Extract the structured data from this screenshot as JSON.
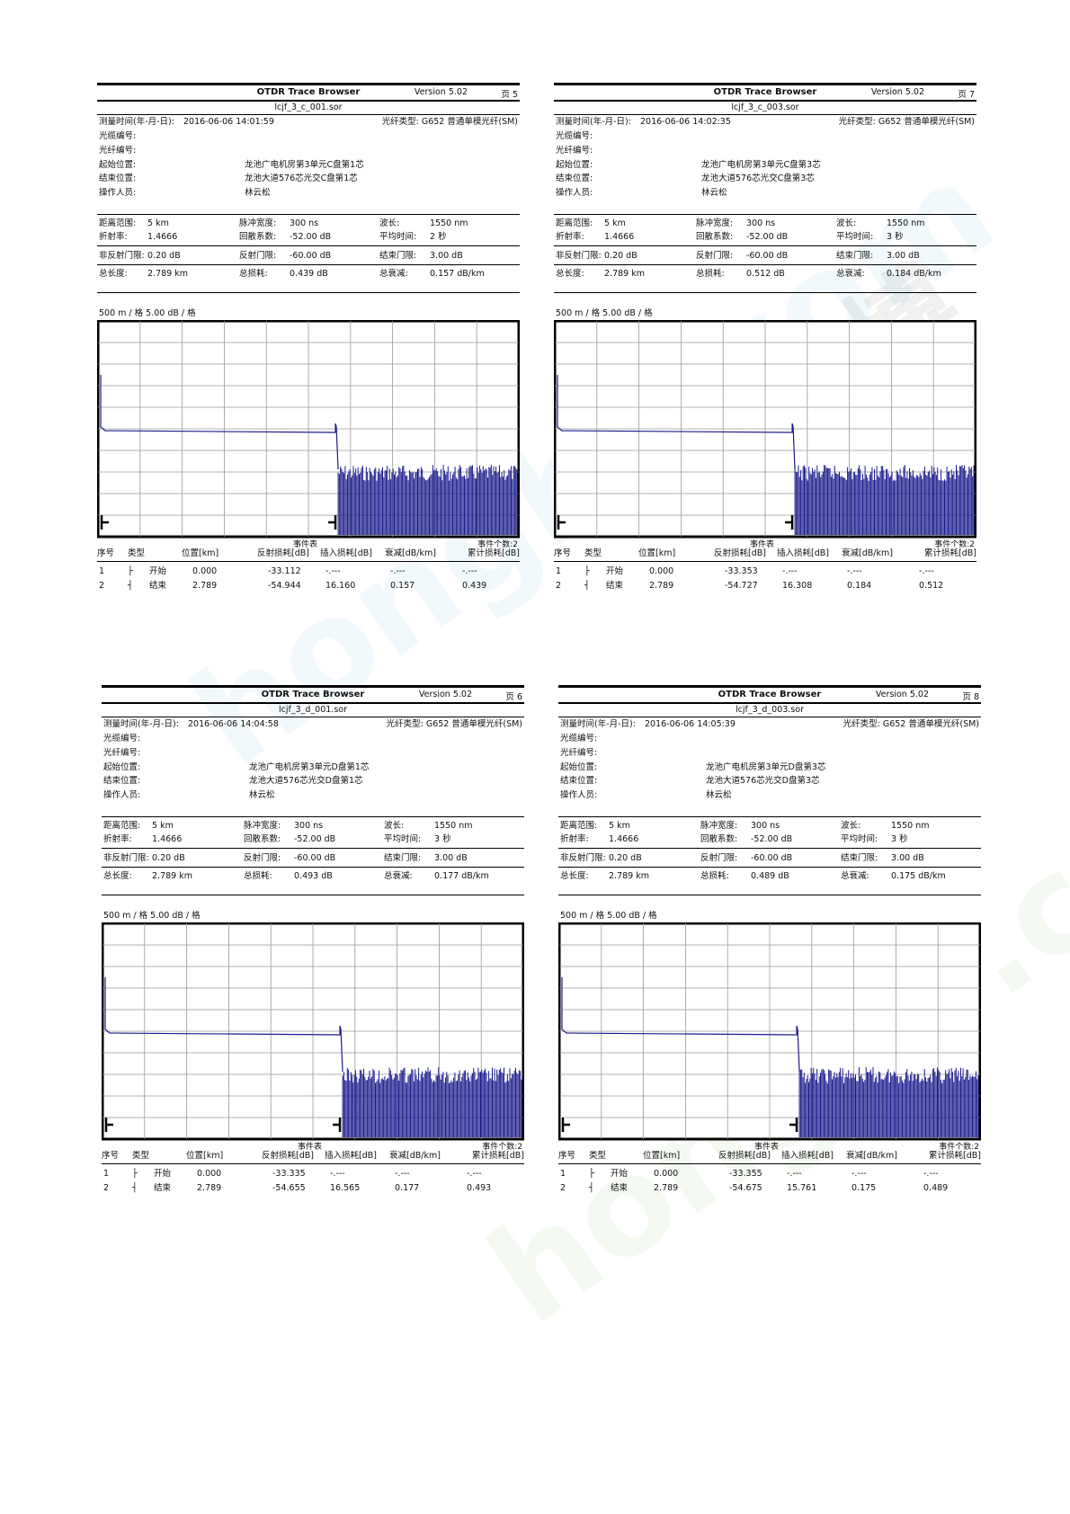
{
  "panels": [
    {
      "app": "OTDR Trace Browser",
      "version": "Version 5.02",
      "page": "页 5",
      "file": "lcjf_3_c_001.sor",
      "measure_time_label": "测量时间(年-月-日):",
      "measure_time": "2016-06-06  14:01:59",
      "fiber_type": "光纤类型: G652 普通单模光纤(SM)",
      "cable_no_label": "光缆编号:",
      "fiber_no_label": "光纤编号:",
      "start_label": "起始位置:",
      "start": "龙池广电机房第3单元C盘第1芯",
      "end_label": "结束位置:",
      "end": "龙池大道576芯光交C盘第1芯",
      "operator_label": "操作人员:",
      "operator": "林云松",
      "range_label": "距离范围:",
      "range": "5 km",
      "pulse_label": "脉冲宽度:",
      "pulse": "300 ns",
      "wl_label": "波长:",
      "wl": "1550 nm",
      "ior_label": "折射率:",
      "ior": "1.4666",
      "bs_label": "回散系数:",
      "bs": "-52.00 dB",
      "avg_label": "平均时间:",
      "avg": "2 秒",
      "nonref_label": "非反射门限:",
      "nonref": "0.20 dB",
      "ref_label": "反射门限:",
      "ref": "-60.00 dB",
      "endth_label": "结束门限:",
      "endth": "3.00 dB",
      "len_label": "总长度:",
      "len": "2.789 km",
      "loss_label": "总损耗:",
      "loss": "0.439 dB",
      "att_label": "总衰减:",
      "att": "0.157 dB/km",
      "scale": "500 m / 格    5.00 dB / 格",
      "event_table_label": "事件表",
      "event_count": "事件个数:2",
      "cols": [
        "序号",
        "类型",
        "位置[km]",
        "反射损耗[dB]",
        "插入损耗[dB]",
        "衰减[dB/km]",
        "累计损耗[dB]"
      ],
      "rows": [
        [
          "1",
          "├",
          "开始",
          "0.000",
          "-33.112",
          "-.---",
          "-.---",
          "-.---"
        ],
        [
          "2",
          "┤",
          "结束",
          "2.789",
          "-54.944",
          "16.160",
          "0.157",
          "0.439"
        ]
      ],
      "chart_data": {
        "type": "line",
        "xlabel": "",
        "ylabel": "",
        "x_per_div_m": 500,
        "y_per_div_db": 5,
        "events_km": [
          0.0,
          2.789
        ],
        "reflection_db": [
          -33.112,
          -54.944
        ]
      }
    },
    {
      "app": "OTDR Trace Browser",
      "version": "Version 5.02",
      "page": "页 7",
      "file": "lcjf_3_c_003.sor",
      "measure_time_label": "测量时间(年-月-日):",
      "measure_time": "2016-06-06  14:02:35",
      "fiber_type": "光纤类型: G652 普通单模光纤(SM)",
      "cable_no_label": "光缆编号:",
      "fiber_no_label": "光纤编号:",
      "start_label": "起始位置:",
      "start": "龙池广电机房第3单元C盘第3芯",
      "end_label": "结束位置:",
      "end": "龙池大道576芯光交C盘第3芯",
      "operator_label": "操作人员:",
      "operator": "林云松",
      "range_label": "距离范围:",
      "range": "5 km",
      "pulse_label": "脉冲宽度:",
      "pulse": "300 ns",
      "wl_label": "波长:",
      "wl": "1550 nm",
      "ior_label": "折射率:",
      "ior": "1.4666",
      "bs_label": "回散系数:",
      "bs": "-52.00 dB",
      "avg_label": "平均时间:",
      "avg": "3 秒",
      "nonref_label": "非反射门限:",
      "nonref": "0.20 dB",
      "ref_label": "反射门限:",
      "ref": "-60.00 dB",
      "endth_label": "结束门限:",
      "endth": "3.00 dB",
      "len_label": "总长度:",
      "len": "2.789 km",
      "loss_label": "总损耗:",
      "loss": "0.512 dB",
      "att_label": "总衰减:",
      "att": "0.184 dB/km",
      "scale": "500 m / 格    5.00 dB / 格",
      "event_table_label": "事件表",
      "event_count": "事件个数:2",
      "cols": [
        "序号",
        "类型",
        "位置[km]",
        "反射损耗[dB]",
        "插入损耗[dB]",
        "衰减[dB/km]",
        "累计损耗[dB]"
      ],
      "rows": [
        [
          "1",
          "├",
          "开始",
          "0.000",
          "-33.353",
          "-.---",
          "-.---",
          "-.---"
        ],
        [
          "2",
          "┤",
          "结束",
          "2.789",
          "-54.727",
          "16.308",
          "0.184",
          "0.512"
        ]
      ],
      "chart_data": {
        "type": "line",
        "xlabel": "",
        "ylabel": "",
        "x_per_div_m": 500,
        "y_per_div_db": 5,
        "events_km": [
          0.0,
          2.789
        ],
        "reflection_db": [
          -33.353,
          -54.727
        ]
      }
    },
    {
      "app": "OTDR Trace Browser",
      "version": "Version 5.02",
      "page": "页 6",
      "file": "lcjf_3_d_001.sor",
      "measure_time_label": "测量时间(年-月-日):",
      "measure_time": "2016-06-06  14:04:58",
      "fiber_type": "光纤类型: G652 普通单模光纤(SM)",
      "cable_no_label": "光缆编号:",
      "fiber_no_label": "光纤编号:",
      "start_label": "起始位置:",
      "start": "龙池广电机房第3单元D盘第1芯",
      "end_label": "结束位置:",
      "end": "龙池大道576芯光交D盘第1芯",
      "operator_label": "操作人员:",
      "operator": "林云松",
      "range_label": "距离范围:",
      "range": "5 km",
      "pulse_label": "脉冲宽度:",
      "pulse": "300 ns",
      "wl_label": "波长:",
      "wl": "1550 nm",
      "ior_label": "折射率:",
      "ior": "1.4666",
      "bs_label": "回散系数:",
      "bs": "-52.00 dB",
      "avg_label": "平均时间:",
      "avg": "3 秒",
      "nonref_label": "非反射门限:",
      "nonref": "0.20 dB",
      "ref_label": "反射门限:",
      "ref": "-60.00 dB",
      "endth_label": "结束门限:",
      "endth": "3.00 dB",
      "len_label": "总长度:",
      "len": "2.789 km",
      "loss_label": "总损耗:",
      "loss": "0.493 dB",
      "att_label": "总衰减:",
      "att": "0.177 dB/km",
      "scale": "500 m / 格    5.00 dB / 格",
      "event_table_label": "事件表",
      "event_count": "事件个数:2",
      "cols": [
        "序号",
        "类型",
        "位置[km]",
        "反射损耗[dB]",
        "插入损耗[dB]",
        "衰减[dB/km]",
        "累计损耗[dB]"
      ],
      "rows": [
        [
          "1",
          "├",
          "开始",
          "0.000",
          "-33.335",
          "-.---",
          "-.---",
          "-.---"
        ],
        [
          "2",
          "┤",
          "结束",
          "2.789",
          "-54.655",
          "16.565",
          "0.177",
          "0.493"
        ]
      ],
      "chart_data": {
        "type": "line",
        "xlabel": "",
        "ylabel": "",
        "x_per_div_m": 500,
        "y_per_div_db": 5,
        "events_km": [
          0.0,
          2.789
        ],
        "reflection_db": [
          -33.335,
          -54.655
        ]
      }
    },
    {
      "app": "OTDR Trace Browser",
      "version": "Version 5.02",
      "page": "页 8",
      "file": "lcjf_3_d_003.sor",
      "measure_time_label": "测量时间(年-月-日):",
      "measure_time": "2016-06-06  14:05:39",
      "fiber_type": "光纤类型: G652 普通单模光纤(SM)",
      "cable_no_label": "光缆编号:",
      "fiber_no_label": "光纤编号:",
      "start_label": "起始位置:",
      "start": "龙池广电机房第3单元D盘第3芯",
      "end_label": "结束位置:",
      "end": "龙池大道576芯光交D盘第3芯",
      "operator_label": "操作人员:",
      "operator": "林云松",
      "range_label": "距离范围:",
      "range": "5 km",
      "pulse_label": "脉冲宽度:",
      "pulse": "300 ns",
      "wl_label": "波长:",
      "wl": "1550 nm",
      "ior_label": "折射率:",
      "ior": "1.4666",
      "bs_label": "回散系数:",
      "bs": "-52.00 dB",
      "avg_label": "平均时间:",
      "avg": "3 秒",
      "nonref_label": "非反射门限:",
      "nonref": "0.20 dB",
      "ref_label": "反射门限:",
      "ref": "-60.00 dB",
      "endth_label": "结束门限:",
      "endth": "3.00 dB",
      "len_label": "总长度:",
      "len": "2.789 km",
      "loss_label": "总损耗:",
      "loss": "0.489 dB",
      "att_label": "总衰减:",
      "att": "0.175 dB/km",
      "scale": "500 m / 格    5.00 dB / 格",
      "event_table_label": "事件表",
      "event_count": "事件个数:2",
      "cols": [
        "序号",
        "类型",
        "位置[km]",
        "反射损耗[dB]",
        "插入损耗[dB]",
        "衰减[dB/km]",
        "累计损耗[dB]"
      ],
      "rows": [
        [
          "1",
          "├",
          "开始",
          "0.000",
          "-33.355",
          "-.---",
          "-.---",
          "-.---"
        ],
        [
          "2",
          "┤",
          "结束",
          "2.789",
          "-54.675",
          "15.761",
          "0.175",
          "0.489"
        ]
      ],
      "chart_data": {
        "type": "line",
        "xlabel": "",
        "ylabel": "",
        "x_per_div_m": 500,
        "y_per_div_db": 5,
        "events_km": [
          0.0,
          2.789
        ],
        "reflection_db": [
          -33.355,
          -54.675
        ]
      }
    }
  ],
  "trace_color": "#1a1a8c"
}
